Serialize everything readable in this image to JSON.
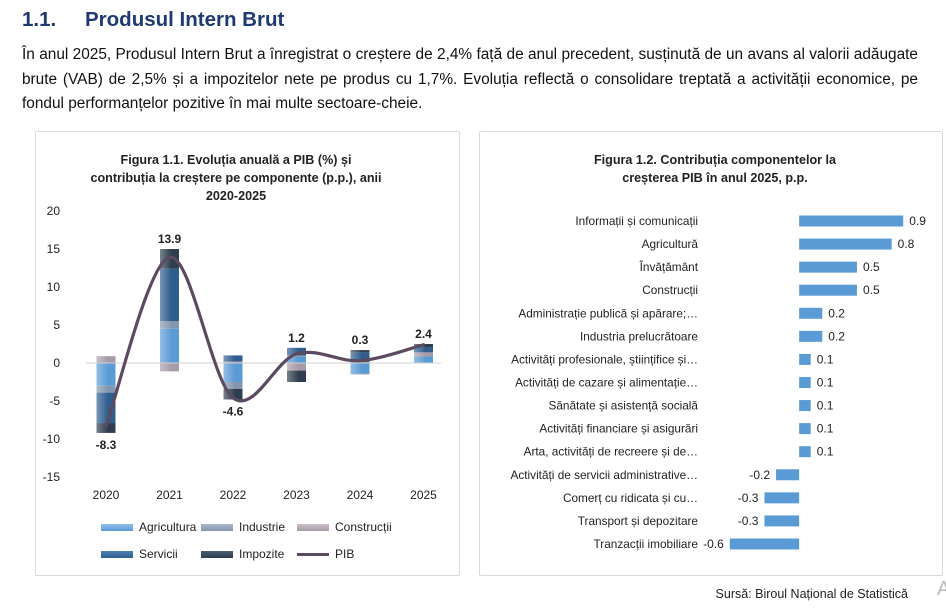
{
  "section": {
    "number": "1.1.",
    "title": "Produsul Intern Brut"
  },
  "intro_text": "În anul 2025, Produsul Intern Brut a înregistrat o creștere de 2,4% față de anul precedent, susținută de un avans al valorii adăugate brute (VAB) de 2,5% și a impozitelor nete pe produs cu 1,7%. Evoluția reflectă o consolidare treptată a activității economice, pe fondul performanțelor pozitive în mai multe sectoare-cheie.",
  "chart_data": [
    {
      "type": "bar",
      "stacked": true,
      "title": "Figura 1.1. Evoluția anuală a PIB (%) și contribuția la creștere pe componente (p.p.), anii 2020-2025",
      "title_lines": [
        "Figura 1.1. Evoluția anuală a PIB (%) și",
        "contribuția la creștere pe componente (p.p.), anii",
        "2020-2025"
      ],
      "categories": [
        "2020",
        "2021",
        "2022",
        "2023",
        "2024",
        "2025"
      ],
      "ylim": [
        -15,
        20
      ],
      "yticks": [
        "20",
        "15",
        "10",
        "5",
        "0",
        "-5",
        "-10",
        "-15"
      ],
      "ytick_values": [
        20,
        15,
        10,
        5,
        0,
        -5,
        -10,
        -15
      ],
      "series": [
        {
          "name": "Agricultura",
          "values": [
            -3.0,
            4.5,
            -2.5,
            0.8,
            -1.4,
            0.8
          ]
        },
        {
          "name": "Industrie",
          "values": [
            -0.9,
            1.0,
            -0.9,
            0.2,
            -0.1,
            0.2
          ]
        },
        {
          "name": "Construcții",
          "values": [
            0.9,
            -1.1,
            0.2,
            -1.0,
            0.1,
            0.4
          ]
        },
        {
          "name": "Servicii",
          "values": [
            -4.0,
            6.9,
            0.8,
            1.0,
            1.3,
            0.7
          ]
        },
        {
          "name": "Impozite",
          "values": [
            -1.3,
            2.6,
            -1.4,
            -1.5,
            0.3,
            0.4
          ]
        }
      ],
      "line": {
        "name": "PIB",
        "values": [
          -8.3,
          13.9,
          -4.6,
          1.2,
          0.3,
          2.4
        ]
      },
      "data_labels": [
        "-8.3",
        "13.9",
        "-4.6",
        "1.2",
        "0.3",
        "2.4"
      ],
      "legend": [
        "Agricultura",
        "Industrie",
        "Construcții",
        "Servicii",
        "Impozite",
        "PIB"
      ],
      "legend_position": "bottom",
      "colors": {
        "Agricultura": "#5b9bd5",
        "Industrie": "#8497b0",
        "Construcții": "#a89ba9",
        "Servicii": "#2e5d8e",
        "Impozite": "#2f3e4e",
        "PIB": "#5b4a60"
      }
    },
    {
      "type": "bar",
      "orientation": "horizontal",
      "title": "Figura 1.2. Contribuția componentelor la creșterea PIB în anul 2025, p.p.",
      "title_lines": [
        "Figura 1.2. Contribuția componentelor la",
        "creșterea PIB în anul 2025, p.p."
      ],
      "categories": [
        "Informații și comunicații",
        "Agricultură",
        "Învățământ",
        "Construcții",
        "Administrație publică și apărare;…",
        "Industria prelucrătoare",
        "Activități profesionale, științifice și…",
        "Activități de cazare și alimentație…",
        "Sănătate și asistență socială",
        "Activități financiare și asigurări",
        "Arta, activități de recreere și de…",
        "Activități de servicii administrative…",
        "Comerț cu ridicata și cu…",
        "Transport și depozitare",
        "Tranzacții imobiliare"
      ],
      "values": [
        0.9,
        0.8,
        0.5,
        0.5,
        0.2,
        0.2,
        0.1,
        0.1,
        0.1,
        0.1,
        0.1,
        -0.2,
        -0.3,
        -0.3,
        -0.6
      ],
      "value_labels": [
        "0.9",
        "0.8",
        "0.5",
        "0.5",
        "0.2",
        "0.2",
        "0.1",
        "0.1",
        "0.1",
        "0.1",
        "0.1",
        "-0.2",
        "-0.3",
        "-0.3",
        "-0.6"
      ],
      "xlim": [
        -0.65,
        0.95
      ],
      "color": "#5b9bd5"
    }
  ],
  "source": "Sursă: Biroul Național de Statistică",
  "corner_mark": "A"
}
